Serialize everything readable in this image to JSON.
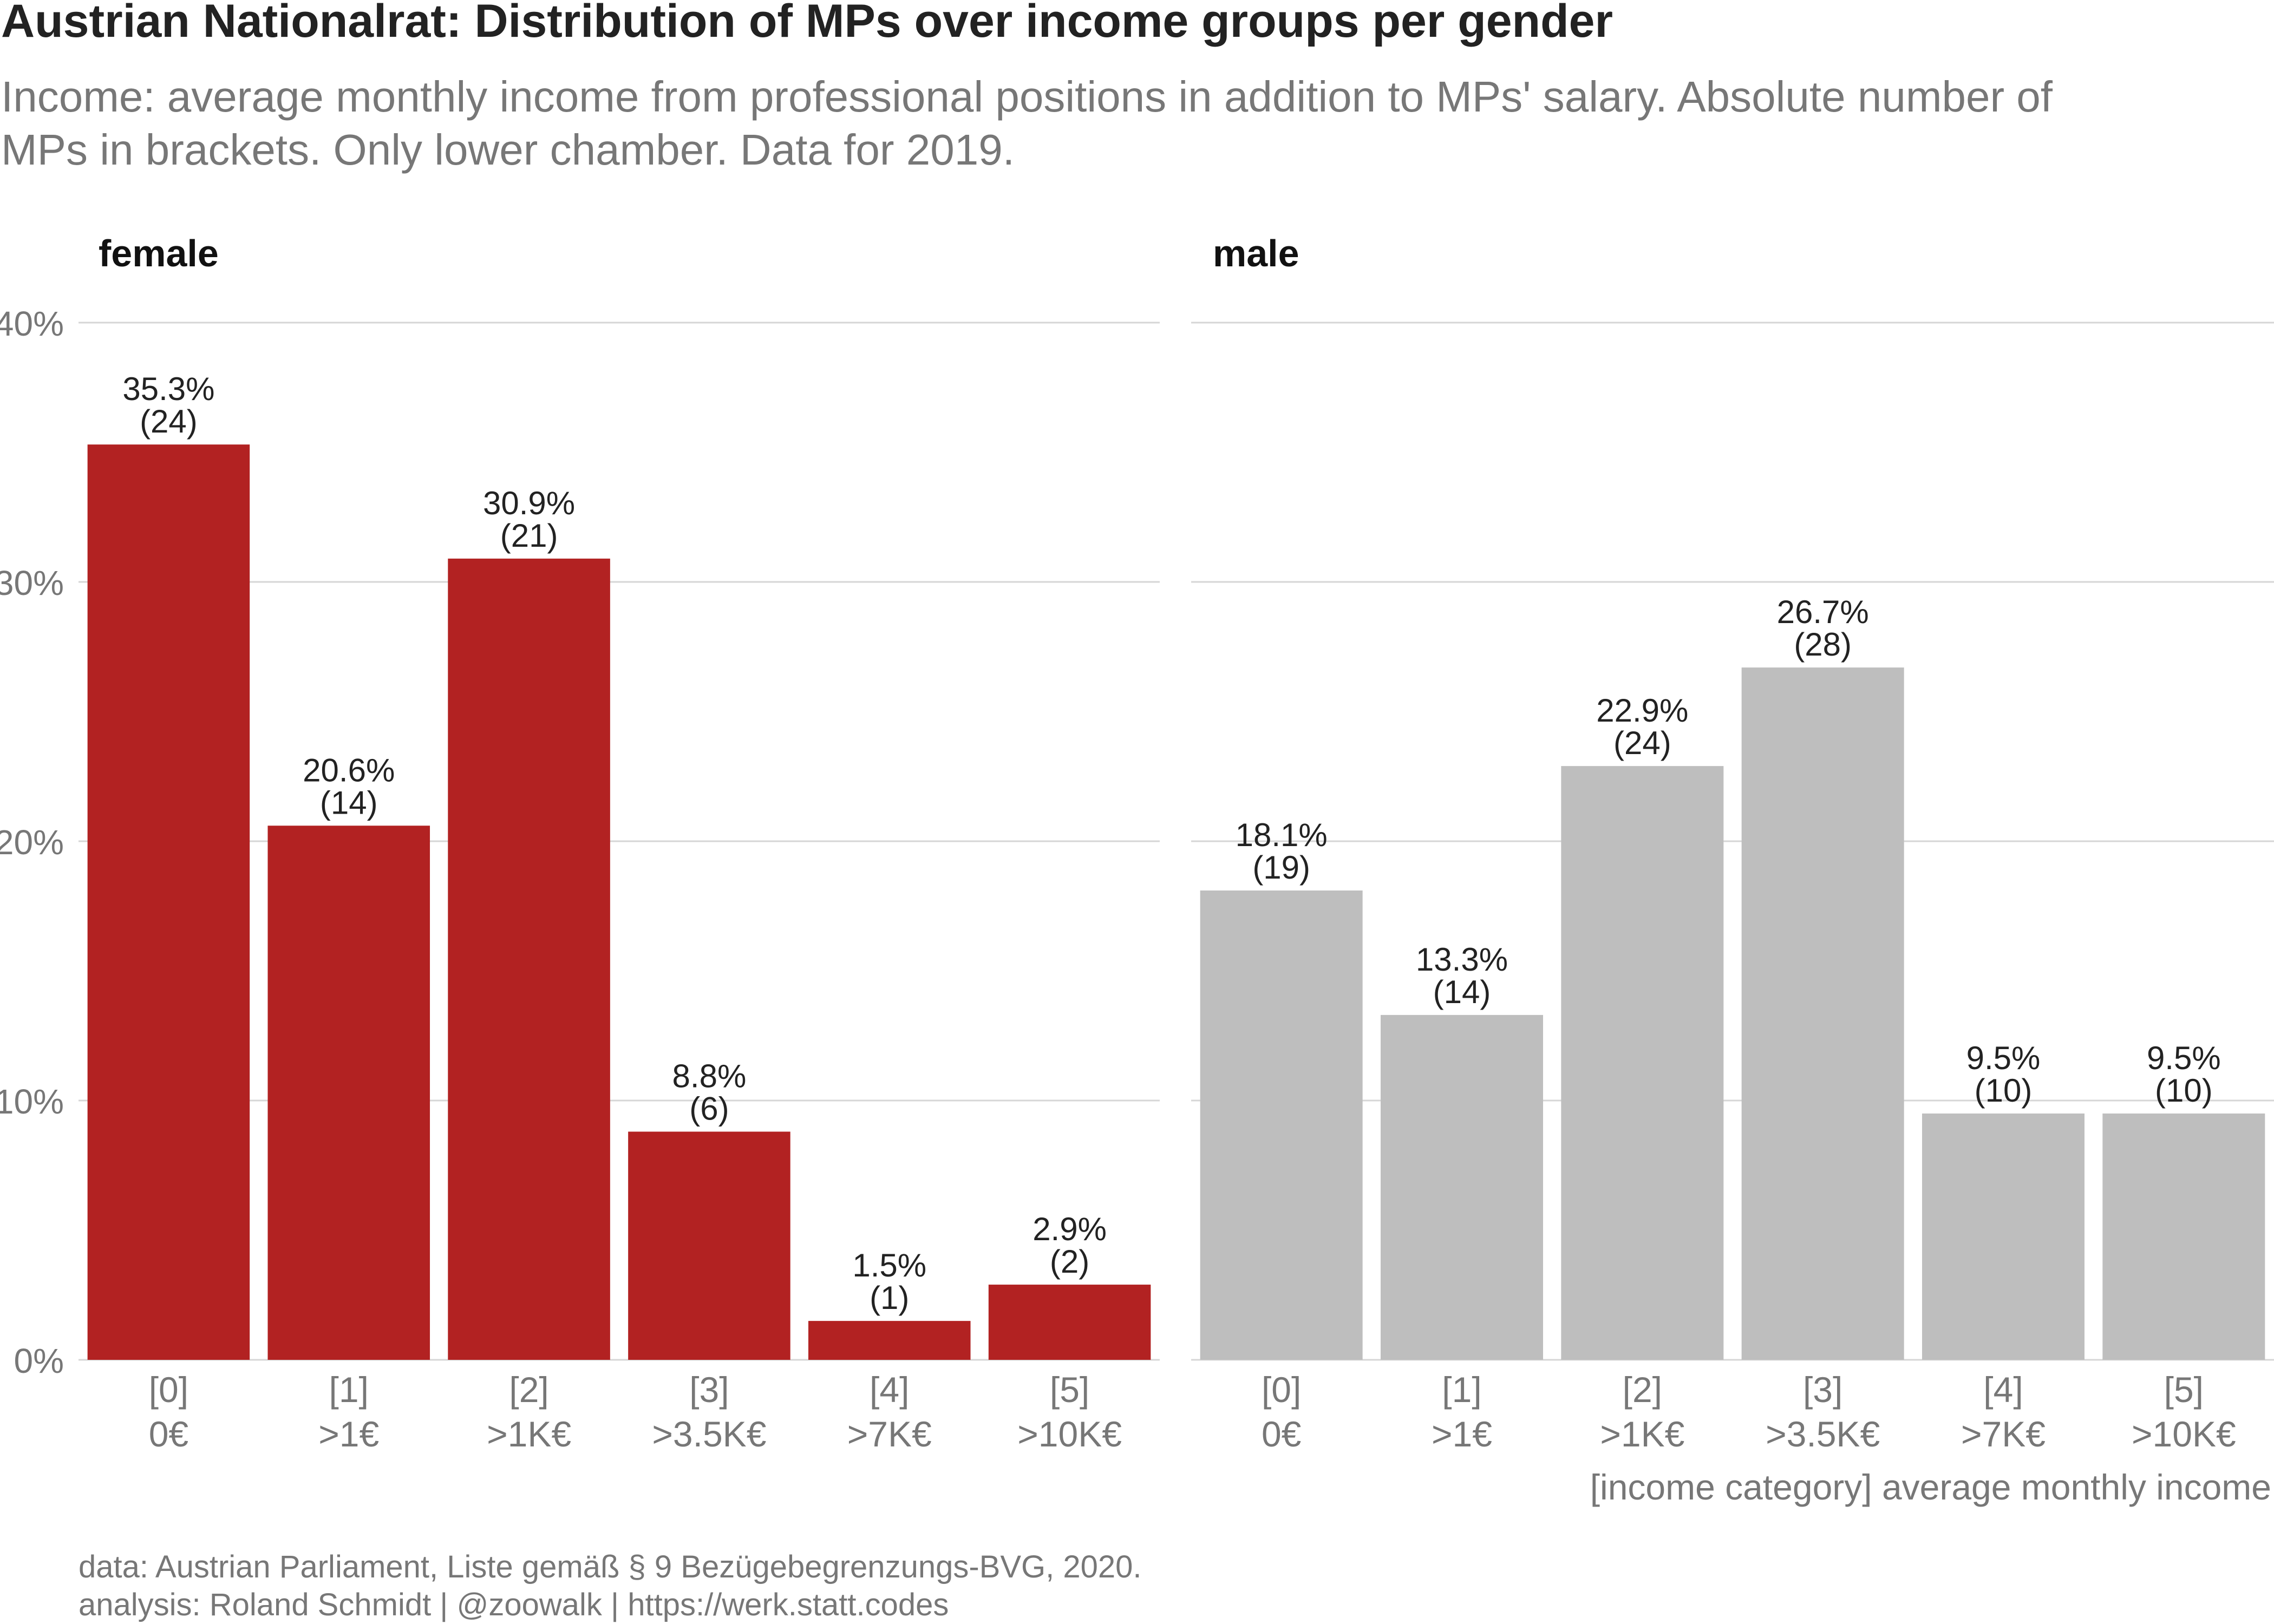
{
  "chart_data": {
    "type": "bar",
    "title": "Austrian Nationalrat: Distribution of MPs over income groups per gender",
    "subtitle_lines": [
      "Income: average monthly income from professional positions in addition to MPs' salary. Absolute number of",
      "MPs in brackets. Only lower chamber. Data for 2019."
    ],
    "categories": [
      {
        "code": "[0]",
        "label": "0€"
      },
      {
        "code": "[1]",
        "label": ">1€"
      },
      {
        "code": "[2]",
        "label": ">1K€"
      },
      {
        "code": "[3]",
        "label": ">3.5K€"
      },
      {
        "code": "[4]",
        "label": ">7K€"
      },
      {
        "code": "[5]",
        "label": ">10K€"
      }
    ],
    "series": [
      {
        "name": "female",
        "color": "#b22222",
        "values": [
          35.3,
          20.6,
          30.9,
          8.8,
          1.5,
          2.9
        ],
        "labels": [
          "35.3%",
          "20.6%",
          "30.9%",
          "8.8%",
          "1.5%",
          "2.9%"
        ],
        "counts": [
          "(24)",
          "(14)",
          "(21)",
          "(6)",
          "(1)",
          "(2)"
        ]
      },
      {
        "name": "male",
        "color": "#bebebe",
        "values": [
          18.1,
          13.3,
          22.9,
          26.7,
          9.5,
          9.5
        ],
        "labels": [
          "18.1%",
          "13.3%",
          "22.9%",
          "26.7%",
          "9.5%",
          "9.5%"
        ],
        "counts": [
          "(19)",
          "(14)",
          "(24)",
          "(28)",
          "(10)",
          "(10)"
        ]
      }
    ],
    "yticks": [
      0,
      10,
      20,
      30,
      40
    ],
    "ytick_labels": [
      "0%",
      "10%",
      "20%",
      "30%",
      "40%"
    ],
    "ylim": [
      0,
      40
    ],
    "xlabel": "[income category] average monthly income",
    "ylabel": "",
    "grid": "horizontal",
    "legend": "none (facet labels)"
  },
  "caption": {
    "line1": "data: Austrian Parliament, Liste gemäß § 9 Bezügebegrenzungs-BVG, 2020.",
    "line2": "analysis: Roland Schmidt | @zoowalk | https://werk.statt.codes"
  }
}
